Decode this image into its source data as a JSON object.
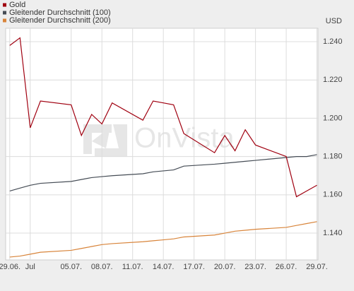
{
  "chart_data": {
    "type": "line",
    "y_unit": "USD",
    "watermark": "OnVista",
    "x": [
      0,
      1,
      2,
      3,
      6,
      7,
      8,
      9,
      10,
      13,
      14,
      15,
      16,
      17,
      20,
      21,
      22,
      23,
      24,
      27,
      28,
      29,
      30
    ],
    "xlim": [
      -0.4,
      30.1
    ],
    "xticks": [
      {
        "value": 0,
        "label": "29.06."
      },
      {
        "value": 2,
        "label": "Jul"
      },
      {
        "value": 6,
        "label": "05.07."
      },
      {
        "value": 9,
        "label": "08.07."
      },
      {
        "value": 12,
        "label": "11.07."
      },
      {
        "value": 15,
        "label": "14.07."
      },
      {
        "value": 18,
        "label": "17.07."
      },
      {
        "value": 21,
        "label": "20.07."
      },
      {
        "value": 24,
        "label": "23.07."
      },
      {
        "value": 27,
        "label": "26.07."
      },
      {
        "value": 30,
        "label": "29.07."
      }
    ],
    "ylim": [
      1.126,
      1.247
    ],
    "yticks": [
      {
        "value": 1.14,
        "label": "1.140"
      },
      {
        "value": 1.16,
        "label": "1.160"
      },
      {
        "value": 1.18,
        "label": "1.180"
      },
      {
        "value": 1.2,
        "label": "1.200"
      },
      {
        "value": 1.22,
        "label": "1.220"
      },
      {
        "value": 1.24,
        "label": "1.240"
      }
    ],
    "grid": true,
    "legend": "top-left",
    "series": [
      {
        "name": "Gold",
        "color": "#a00010",
        "values": [
          1.238,
          1.242,
          1.195,
          1.209,
          1.207,
          1.191,
          1.202,
          1.197,
          1.208,
          1.199,
          1.209,
          1.208,
          1.207,
          1.192,
          1.182,
          1.191,
          1.183,
          1.194,
          1.186,
          1.18,
          1.159,
          1.162,
          1.165
        ]
      },
      {
        "name": "Gleitender Durchschnitt (100)",
        "color": "#454c55",
        "values": [
          1.162,
          1.1635,
          1.165,
          1.166,
          1.167,
          1.168,
          1.169,
          1.1695,
          1.17,
          1.171,
          1.172,
          1.1725,
          1.173,
          1.175,
          1.176,
          1.1765,
          1.177,
          1.1775,
          1.178,
          1.1795,
          1.18,
          1.18,
          1.181
        ]
      },
      {
        "name": "Gleitender Durchschnitt (200)",
        "color": "#d8843a",
        "values": [
          1.1275,
          1.128,
          1.129,
          1.13,
          1.131,
          1.132,
          1.133,
          1.134,
          1.1345,
          1.1355,
          1.136,
          1.1365,
          1.137,
          1.138,
          1.139,
          1.14,
          1.141,
          1.1415,
          1.142,
          1.143,
          1.144,
          1.145,
          1.146
        ]
      }
    ]
  }
}
